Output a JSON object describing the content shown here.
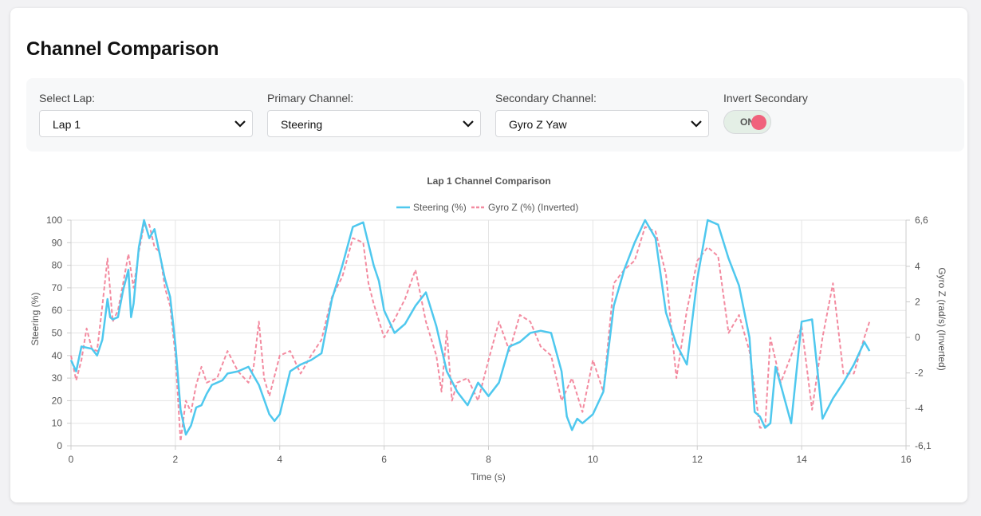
{
  "page": {
    "title": "Channel Comparison"
  },
  "controls": {
    "lap": {
      "label": "Select Lap:",
      "value": "Lap 1"
    },
    "primary": {
      "label": "Primary Channel:",
      "value": "Steering"
    },
    "secondary": {
      "label": "Secondary Channel:",
      "value": "Gyro Z Yaw"
    },
    "invert": {
      "label": "Invert Secondary",
      "state": "ON",
      "on_color": "#f0627c"
    }
  },
  "chart_data": {
    "type": "line",
    "title": "Lap 1 Channel Comparison",
    "xlabel": "Time (s)",
    "ylabel": "Steering (%)",
    "y2label": "Gyro Z (rad/s) (Inverted)",
    "xlim": [
      0,
      16
    ],
    "ylim": [
      0,
      100
    ],
    "y2lim": [
      -6.1,
      6.6
    ],
    "xticks": [
      "0",
      "2",
      "4",
      "6",
      "8",
      "10",
      "12",
      "14",
      "16"
    ],
    "yticks": [
      "0",
      "10",
      "20",
      "30",
      "40",
      "50",
      "60",
      "70",
      "80",
      "90",
      "100"
    ],
    "y2ticks": [
      "-6,1",
      "-4",
      "-2",
      "0",
      "2",
      "4",
      "6,6"
    ],
    "legend_position": "top",
    "grid": true,
    "series": [
      {
        "name": "Steering (%)",
        "color": "#4fc8ee",
        "style": "solid",
        "axis": "left",
        "x": [
          0,
          0.1,
          0.2,
          0.4,
          0.5,
          0.6,
          0.7,
          0.75,
          0.8,
          0.9,
          1.0,
          1.1,
          1.15,
          1.2,
          1.3,
          1.4,
          1.5,
          1.6,
          1.7,
          1.8,
          1.9,
          2.0,
          2.1,
          2.2,
          2.3,
          2.4,
          2.5,
          2.6,
          2.7,
          2.8,
          2.9,
          3.0,
          3.2,
          3.4,
          3.6,
          3.8,
          3.9,
          4.0,
          4.2,
          4.4,
          4.6,
          4.8,
          5.0,
          5.2,
          5.4,
          5.6,
          5.8,
          5.9,
          6.0,
          6.2,
          6.4,
          6.6,
          6.8,
          7.0,
          7.2,
          7.4,
          7.6,
          7.8,
          8.0,
          8.2,
          8.4,
          8.6,
          8.8,
          9.0,
          9.2,
          9.4,
          9.5,
          9.6,
          9.7,
          9.8,
          10.0,
          10.2,
          10.4,
          10.6,
          10.8,
          11.0,
          11.2,
          11.4,
          11.6,
          11.8,
          12.0,
          12.2,
          12.4,
          12.6,
          12.8,
          13.0,
          13.1,
          13.2,
          13.3,
          13.4,
          13.5,
          13.6,
          13.8,
          14.0,
          14.2,
          14.4,
          14.6,
          14.8,
          15.0,
          15.2,
          15.3
        ],
        "y": [
          38,
          33,
          44,
          43,
          40,
          47,
          65,
          57,
          56,
          57,
          69,
          78,
          57,
          63,
          88,
          100,
          92,
          96,
          85,
          74,
          66,
          45,
          16,
          5,
          9,
          17,
          18,
          23,
          27,
          28,
          29,
          32,
          33,
          35,
          27,
          14,
          11,
          14,
          33,
          36,
          38,
          41,
          65,
          80,
          97,
          99,
          80,
          73,
          60,
          50,
          54,
          62,
          68,
          53,
          33,
          24,
          18,
          28,
          22,
          28,
          44,
          46,
          50,
          51,
          50,
          33,
          13,
          7,
          12,
          10,
          14,
          24,
          62,
          78,
          90,
          100,
          92,
          59,
          45,
          36,
          74,
          100,
          98,
          83,
          71,
          48,
          15,
          13,
          8,
          10,
          35,
          27,
          10,
          55,
          56,
          12,
          21,
          28,
          36,
          46,
          42
        ]
      },
      {
        "name": "Gyro Z (%) (Inverted)",
        "color": "#f38ba0",
        "style": "dashed",
        "axis": "left",
        "x": [
          0,
          0.1,
          0.2,
          0.3,
          0.4,
          0.5,
          0.6,
          0.7,
          0.8,
          0.9,
          1.0,
          1.1,
          1.2,
          1.3,
          1.4,
          1.5,
          1.6,
          1.7,
          1.8,
          1.9,
          2.0,
          2.1,
          2.2,
          2.3,
          2.4,
          2.5,
          2.6,
          2.8,
          3.0,
          3.2,
          3.4,
          3.5,
          3.6,
          3.7,
          3.8,
          4.0,
          4.2,
          4.4,
          4.6,
          4.8,
          5.0,
          5.2,
          5.4,
          5.6,
          5.7,
          5.8,
          6.0,
          6.2,
          6.4,
          6.6,
          6.8,
          7.0,
          7.1,
          7.2,
          7.3,
          7.4,
          7.6,
          7.8,
          8.0,
          8.2,
          8.4,
          8.6,
          8.8,
          9.0,
          9.2,
          9.4,
          9.6,
          9.8,
          10.0,
          10.2,
          10.4,
          10.6,
          10.8,
          11.0,
          11.2,
          11.4,
          11.6,
          11.8,
          12.0,
          12.2,
          12.4,
          12.6,
          12.8,
          13.0,
          13.2,
          13.3,
          13.4,
          13.6,
          13.8,
          14.0,
          14.2,
          14.4,
          14.6,
          14.8,
          15.0,
          15.2,
          15.3
        ],
        "y": [
          40,
          29,
          38,
          52,
          43,
          42,
          62,
          83,
          55,
          60,
          72,
          85,
          70,
          86,
          98,
          98,
          88,
          86,
          70,
          62,
          40,
          2,
          20,
          15,
          27,
          35,
          28,
          30,
          42,
          33,
          28,
          35,
          55,
          30,
          22,
          40,
          42,
          32,
          40,
          47,
          66,
          75,
          92,
          90,
          72,
          63,
          48,
          56,
          65,
          78,
          55,
          40,
          24,
          51,
          20,
          28,
          30,
          20,
          38,
          55,
          42,
          58,
          55,
          44,
          40,
          20,
          30,
          15,
          38,
          24,
          72,
          78,
          82,
          97,
          95,
          76,
          30,
          60,
          82,
          88,
          84,
          50,
          58,
          42,
          8,
          8,
          48,
          28,
          40,
          53,
          16,
          48,
          72,
          32,
          32,
          48,
          55
        ]
      }
    ]
  }
}
